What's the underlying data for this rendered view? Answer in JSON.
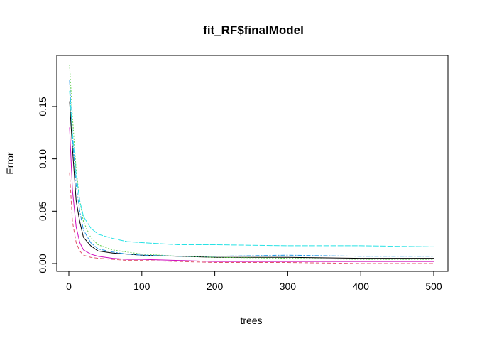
{
  "chart_data": {
    "type": "line",
    "title": "fit_RF$finalModel",
    "xlabel": "trees",
    "ylabel": "Error",
    "xlim": [
      0,
      500
    ],
    "ylim": [
      0,
      0.19
    ],
    "xticks": [
      "0",
      "100",
      "200",
      "300",
      "400",
      "500"
    ],
    "yticks": [
      "0.00",
      "0.05",
      "0.10",
      "0.15"
    ],
    "grid": false,
    "legend": "none",
    "series": [
      {
        "color": "#000000",
        "dash": "",
        "values": [
          [
            1,
            0.155
          ],
          [
            5,
            0.11
          ],
          [
            10,
            0.06
          ],
          [
            15,
            0.04
          ],
          [
            20,
            0.025
          ],
          [
            30,
            0.017
          ],
          [
            40,
            0.012
          ],
          [
            60,
            0.01
          ],
          [
            80,
            0.009
          ],
          [
            100,
            0.008
          ],
          [
            150,
            0.007
          ],
          [
            200,
            0.006
          ],
          [
            300,
            0.006
          ],
          [
            400,
            0.005
          ],
          [
            500,
            0.005
          ]
        ]
      },
      {
        "color": "#df536b",
        "dash": "5,3",
        "values": [
          [
            1,
            0.087
          ],
          [
            5,
            0.04
          ],
          [
            10,
            0.02
          ],
          [
            15,
            0.012
          ],
          [
            20,
            0.008
          ],
          [
            30,
            0.006
          ],
          [
            40,
            0.005
          ],
          [
            60,
            0.004
          ],
          [
            80,
            0.003
          ],
          [
            100,
            0.003
          ],
          [
            150,
            0.002
          ],
          [
            200,
            0.001
          ],
          [
            300,
            0.001
          ],
          [
            400,
            0.0
          ],
          [
            500,
            0.0
          ]
        ]
      },
      {
        "color": "#61d04f",
        "dash": "2,2",
        "values": [
          [
            1,
            0.19
          ],
          [
            5,
            0.14
          ],
          [
            10,
            0.09
          ],
          [
            15,
            0.06
          ],
          [
            20,
            0.04
          ],
          [
            30,
            0.025
          ],
          [
            40,
            0.018
          ],
          [
            60,
            0.013
          ],
          [
            80,
            0.011
          ],
          [
            100,
            0.009
          ],
          [
            150,
            0.007
          ],
          [
            200,
            0.006
          ],
          [
            300,
            0.005
          ],
          [
            400,
            0.004
          ],
          [
            500,
            0.004
          ]
        ]
      },
      {
        "color": "#2297e6",
        "dash": "6,2,2,2",
        "values": [
          [
            1,
            0.175
          ],
          [
            5,
            0.12
          ],
          [
            10,
            0.075
          ],
          [
            15,
            0.05
          ],
          [
            20,
            0.032
          ],
          [
            30,
            0.02
          ],
          [
            40,
            0.014
          ],
          [
            60,
            0.011
          ],
          [
            80,
            0.009
          ],
          [
            100,
            0.008
          ],
          [
            150,
            0.007
          ],
          [
            200,
            0.007
          ],
          [
            300,
            0.008
          ],
          [
            400,
            0.007
          ],
          [
            500,
            0.007
          ]
        ]
      },
      {
        "color": "#28e2e5",
        "dash": "8,2",
        "values": [
          [
            1,
            0.165
          ],
          [
            5,
            0.125
          ],
          [
            10,
            0.085
          ],
          [
            15,
            0.06
          ],
          [
            20,
            0.045
          ],
          [
            30,
            0.034
          ],
          [
            40,
            0.028
          ],
          [
            60,
            0.024
          ],
          [
            80,
            0.021
          ],
          [
            100,
            0.02
          ],
          [
            150,
            0.018
          ],
          [
            200,
            0.018
          ],
          [
            300,
            0.017
          ],
          [
            400,
            0.017
          ],
          [
            500,
            0.016
          ]
        ]
      },
      {
        "color": "#cd0bbc",
        "dash": "",
        "values": [
          [
            1,
            0.13
          ],
          [
            5,
            0.07
          ],
          [
            10,
            0.035
          ],
          [
            15,
            0.02
          ],
          [
            20,
            0.013
          ],
          [
            30,
            0.009
          ],
          [
            40,
            0.007
          ],
          [
            60,
            0.005
          ],
          [
            80,
            0.004
          ],
          [
            100,
            0.004
          ],
          [
            150,
            0.003
          ],
          [
            200,
            0.002
          ],
          [
            300,
            0.002
          ],
          [
            400,
            0.002
          ],
          [
            500,
            0.002
          ]
        ]
      }
    ]
  }
}
